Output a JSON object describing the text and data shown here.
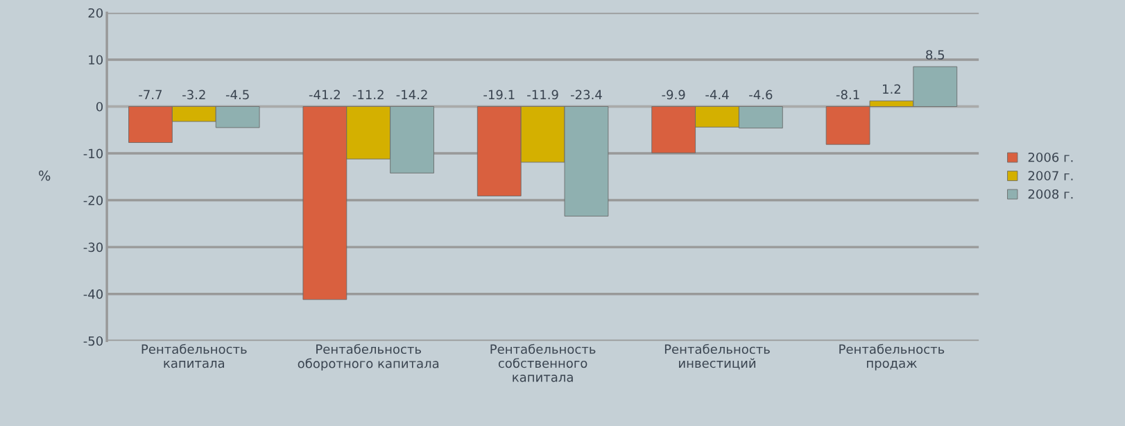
{
  "chart_data": {
    "type": "bar",
    "categories": [
      "Рентабельность\nкапитала",
      "Рентабельность\nоборотного капитала",
      "Рентабельность\nсобственного\nкапитала",
      "Рентабельность\nинвестиций",
      "Рентабельность\nпродаж"
    ],
    "series": [
      {
        "name": "2006 г.",
        "color": "#d9603f",
        "values": [
          -7.7,
          -41.2,
          -19.1,
          -9.9,
          -8.1
        ]
      },
      {
        "name": "2007 г.",
        "color": "#d4b000",
        "values": [
          -3.2,
          -11.2,
          -11.9,
          -4.4,
          1.2
        ]
      },
      {
        "name": "2008 г.",
        "color": "#8fb0b0",
        "values": [
          -4.5,
          -14.2,
          -23.4,
          -4.6,
          8.5
        ]
      }
    ],
    "ylabel": "%",
    "ylim": [
      -50,
      20
    ],
    "yticks": [
      -50,
      -40,
      -30,
      -20,
      -10,
      0,
      10,
      20
    ],
    "grid": "y",
    "legend": "right",
    "data_labels": true
  }
}
